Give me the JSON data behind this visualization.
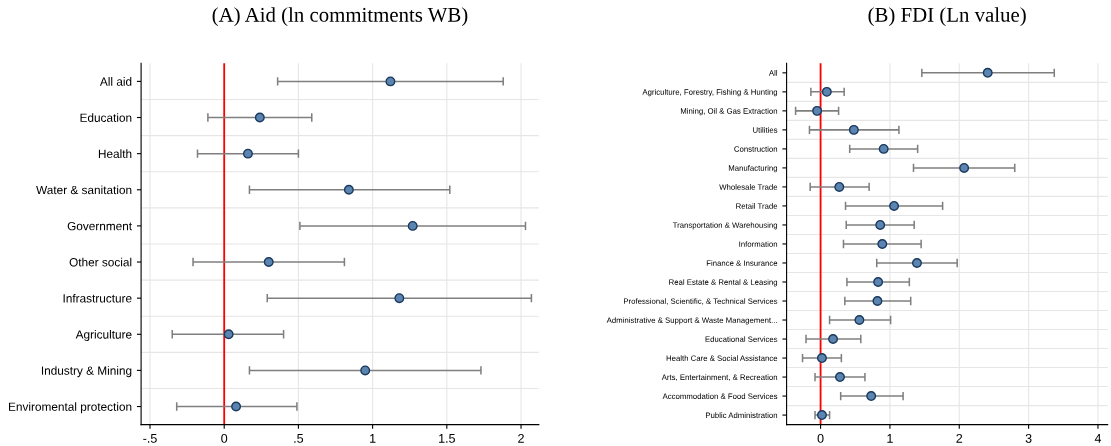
{
  "chart_data": [
    {
      "type": "scatter",
      "title": "(A) Aid (ln commitments WB)",
      "orientation": "horizontal",
      "categories": [
        "All aid",
        "Education",
        "Health",
        "Water & sanitation",
        "Government",
        "Other social",
        "Infrastructure",
        "Agriculture",
        "Industry & Mining",
        "Enviromental protection"
      ],
      "series": [
        {
          "color": "#5b84b1",
          "values": [
            1.12,
            0.24,
            0.16,
            0.84,
            1.27,
            0.3,
            1.18,
            0.03,
            0.95,
            0.08
          ],
          "errors": [
            [
              0.36,
              1.88
            ],
            [
              -0.11,
              0.59
            ],
            [
              -0.18,
              0.5
            ],
            [
              0.17,
              1.52
            ],
            [
              0.51,
              2.03
            ],
            [
              -0.21,
              0.81
            ],
            [
              0.29,
              2.07
            ],
            [
              -0.35,
              0.4
            ],
            [
              0.17,
              1.73
            ],
            [
              -0.32,
              0.49
            ]
          ]
        }
      ],
      "xlim": [
        -0.56,
        2.12
      ],
      "xticks": [
        {
          "value": -0.5,
          "label": "-.5"
        },
        0,
        {
          "value": 0.5,
          "label": ".5"
        },
        1,
        {
          "value": 1.5,
          "label": "1.5"
        },
        2
      ],
      "ref_lines": [
        {
          "axis": "x",
          "value": 0,
          "color": "#ff0000"
        }
      ],
      "grid": true,
      "marker": "circle"
    },
    {
      "type": "scatter",
      "title": "(B) FDI (Ln value)",
      "orientation": "horizontal",
      "categories": [
        "All",
        "Agriculture, Forestry, Fishing & Hunting",
        "Mining, Oil & Gas Extraction",
        "Utilities",
        "Construction",
        "Manufacturing",
        "Wholesale Trade",
        "Retail Trade",
        "Transportation & Warehousing",
        "Information",
        "Finance & Insurance",
        "Real Estate & Rental & Leasing",
        "Professional, Scientific, & Technical Services",
        "Administrative & Support & Waste Management...",
        "Educational Services",
        "Health Care & Social Assistance",
        "Arts, Entertainment, & Recreation",
        "Accommodation & Food Services",
        "Public Administration"
      ],
      "series": [
        {
          "color": "#5b84b1",
          "values": [
            2.41,
            0.09,
            -0.05,
            0.48,
            0.91,
            2.07,
            0.27,
            1.06,
            0.86,
            0.89,
            1.39,
            0.83,
            0.82,
            0.56,
            0.18,
            0.02,
            0.28,
            0.73,
            0.02
          ],
          "errors": [
            [
              1.46,
              3.37
            ],
            [
              -0.14,
              0.34
            ],
            [
              -0.36,
              0.26
            ],
            [
              -0.16,
              1.13
            ],
            [
              0.42,
              1.4
            ],
            [
              1.34,
              2.8
            ],
            [
              -0.15,
              0.7
            ],
            [
              0.36,
              1.76
            ],
            [
              0.37,
              1.35
            ],
            [
              0.33,
              1.45
            ],
            [
              0.81,
              1.97
            ],
            [
              0.38,
              1.28
            ],
            [
              0.35,
              1.3
            ],
            [
              0.13,
              1.01
            ],
            [
              -0.21,
              0.58
            ],
            [
              -0.26,
              0.3
            ],
            [
              -0.08,
              0.64
            ],
            [
              0.29,
              1.19
            ],
            [
              -0.08,
              0.13
            ]
          ]
        }
      ],
      "xlim": [
        -0.49,
        4.14
      ],
      "xticks": [
        0,
        1,
        2,
        3,
        4
      ],
      "ref_lines": [
        {
          "axis": "x",
          "value": 0,
          "color": "#ff0000"
        }
      ],
      "grid": true,
      "marker": "circle"
    }
  ]
}
